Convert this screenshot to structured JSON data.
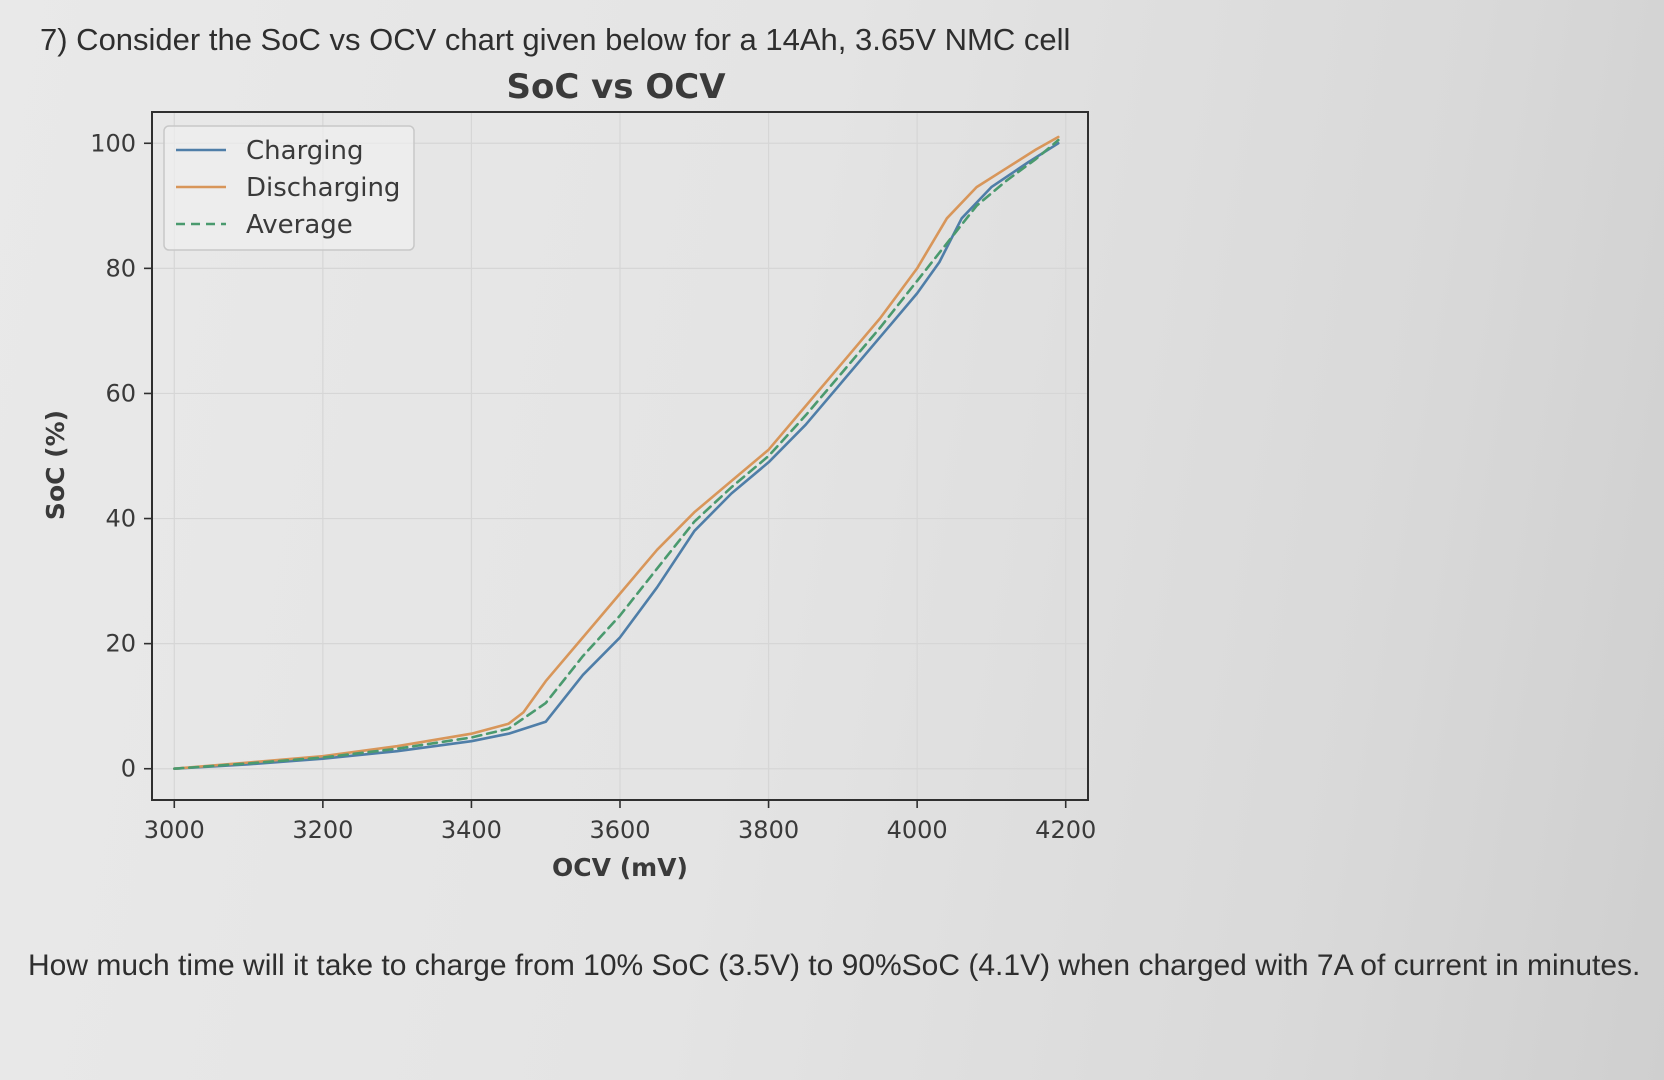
{
  "question": {
    "prompt": "7) Consider the SoC vs OCV chart given below for a 14Ah, 3.65V NMC cell",
    "followup": "How much time will it take to charge from 10% SoC (3.5V) to 90%SoC (4.1V) when charged with 7A of current in minutes."
  },
  "chart_data": {
    "type": "line",
    "title": "SoC vs OCV",
    "xlabel": "OCV (mV)",
    "ylabel": "SoC (%)",
    "xlim": [
      2970,
      4230
    ],
    "ylim": [
      -5,
      105
    ],
    "xticks": [
      3000,
      3200,
      3400,
      3600,
      3800,
      4000,
      4200
    ],
    "yticks": [
      0,
      20,
      40,
      60,
      80,
      100
    ],
    "grid": true,
    "legend_position": "upper-left",
    "series": [
      {
        "name": "Charging",
        "color": "#4f7ea8",
        "dash": "solid",
        "x": [
          3000,
          3100,
          3200,
          3300,
          3400,
          3450,
          3500,
          3550,
          3600,
          3650,
          3700,
          3750,
          3800,
          3850,
          3900,
          3950,
          4000,
          4030,
          4060,
          4100,
          4150,
          4190
        ],
        "y": [
          0,
          0.7,
          1.6,
          2.8,
          4.4,
          5.6,
          7.5,
          15,
          21,
          29,
          38,
          44,
          49,
          55,
          62,
          69,
          76,
          81,
          88,
          93,
          97,
          100
        ]
      },
      {
        "name": "Discharging",
        "color": "#d8965a",
        "dash": "solid",
        "x": [
          3000,
          3100,
          3200,
          3300,
          3400,
          3450,
          3470,
          3500,
          3550,
          3600,
          3650,
          3700,
          3750,
          3800,
          3850,
          3900,
          3950,
          4000,
          4040,
          4080,
          4120,
          4160,
          4190
        ],
        "y": [
          0,
          1.0,
          2.0,
          3.6,
          5.6,
          7.2,
          9.0,
          14,
          21,
          28,
          35,
          41,
          46,
          51,
          58,
          65,
          72,
          80,
          88,
          93,
          96,
          99,
          101
        ]
      },
      {
        "name": "Average",
        "color": "#4a9a6e",
        "dash": "dashed",
        "x": [
          3000,
          3100,
          3200,
          3300,
          3400,
          3450,
          3500,
          3550,
          3600,
          3650,
          3700,
          3750,
          3800,
          3850,
          3900,
          3950,
          4000,
          4040,
          4080,
          4120,
          4160,
          4190
        ],
        "y": [
          0,
          0.85,
          1.8,
          3.2,
          5.0,
          6.4,
          10.5,
          18,
          24.5,
          32,
          39.5,
          45,
          50,
          56.5,
          63.5,
          70.5,
          78,
          84,
          90,
          94,
          97.5,
          100.5
        ]
      }
    ]
  }
}
